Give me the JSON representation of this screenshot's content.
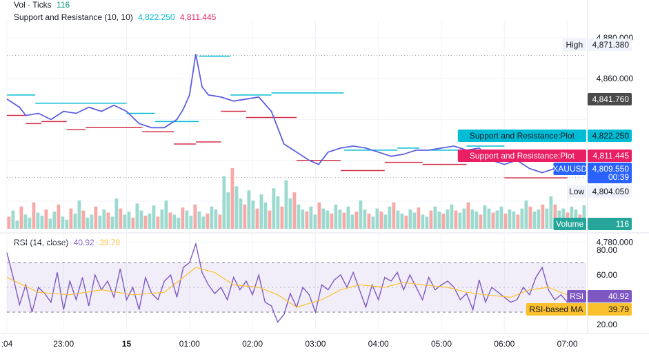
{
  "legend": {
    "vol_label": "Vol · Ticks",
    "vol_value": "116",
    "sr_label": "Support and Resistance (10, 10)",
    "sr_resistance": "4,822.250",
    "sr_support": "4,811.445",
    "rsi_label": "RSI (14, close)",
    "rsi_value": "40.92",
    "rsi_ma_value": "39.79"
  },
  "price_axis": {
    "ticks": [
      {
        "label": "4,880.000",
        "value": 4880
      },
      {
        "label": "4,860.000",
        "value": 4860
      },
      {
        "label": "4,780.000",
        "value": 4780
      }
    ],
    "tags": [
      {
        "name": "high",
        "label": "High",
        "value_label": "4,871.380",
        "value": 4871.38,
        "bg": "#f0f3fa",
        "fg": "#131722"
      },
      {
        "name": "crosshair",
        "label": "",
        "value_label": "4,841.760",
        "value": 4841.76,
        "bg": "#4a4a4a",
        "fg": "#ffffff"
      },
      {
        "name": "resistance",
        "label": "Support and Resistance:Plot",
        "value_label": "4,822.250",
        "value": 4822.25,
        "bg": "#00bcd4",
        "fg": "#131722"
      },
      {
        "name": "support",
        "label": "Support and Resistance:Plot",
        "value_label": "4,811.445",
        "value": 4811.445,
        "bg": "#e91e63",
        "fg": "#ffffff"
      },
      {
        "name": "symbol",
        "label": "XAUUSD",
        "value_label": "4,809.550",
        "value": 4809.55,
        "sub": "00:39",
        "bg": "#2962ff",
        "fg": "#ffffff"
      },
      {
        "name": "low",
        "label": "Low",
        "value_label": "4,804.050",
        "value": 4804.05,
        "bg": "#f0f3fa",
        "fg": "#131722"
      },
      {
        "name": "volume",
        "label": "Volume",
        "value_label": "116",
        "value": 116,
        "bg": "#26a69a",
        "fg": "#ffffff"
      }
    ]
  },
  "rsi_axis": {
    "ticks": [
      {
        "label": "80.00",
        "value": 80
      },
      {
        "label": "60.00",
        "value": 60
      },
      {
        "label": "20.00",
        "value": 20
      }
    ],
    "band": [
      30,
      70
    ],
    "tags": [
      {
        "name": "rsi",
        "label": "RSI",
        "value_label": "40.92",
        "value": 40.92,
        "bg": "#7e57c2",
        "fg": "#ffffff"
      },
      {
        "name": "rsi-ma",
        "label": "RSI-based MA",
        "value_label": "39.79",
        "value": 39.79,
        "bg": "#fbc02d",
        "fg": "#131722"
      }
    ]
  },
  "time_axis": {
    "ticks": [
      {
        "label": ":04",
        "t": 0
      },
      {
        "label": "23:00",
        "t": 0.9
      },
      {
        "label": "15",
        "t": 1.9
      },
      {
        "label": "01:00",
        "t": 2.9
      },
      {
        "label": "02:00",
        "t": 3.9
      },
      {
        "label": "03:00",
        "t": 4.9
      },
      {
        "label": "04:00",
        "t": 5.9
      },
      {
        "label": "05:00",
        "t": 6.9
      },
      {
        "label": "06:00",
        "t": 7.9
      },
      {
        "label": "07:00",
        "t": 8.9
      }
    ]
  },
  "chart_data": [
    {
      "type": "line",
      "title": "Support and Resistance (10, 10)",
      "xlabel": "",
      "ylabel": "",
      "x_unit": "hours since 22:04",
      "ylim": [
        4800,
        4885
      ],
      "series": [
        {
          "name": "XAUUSD",
          "color": "#5b5fe0",
          "x": [
            0,
            0.2,
            0.3,
            0.5,
            0.7,
            0.9,
            1.1,
            1.3,
            1.5,
            1.7,
            1.9,
            2.1,
            2.3,
            2.5,
            2.7,
            2.8,
            2.9,
            3.0,
            3.1,
            3.2,
            3.4,
            3.6,
            3.8,
            4.0,
            4.2,
            4.4,
            4.6,
            4.8,
            4.95,
            5.1,
            5.3,
            5.5,
            5.7,
            5.9,
            6.1,
            6.3,
            6.5,
            6.7,
            6.9,
            7.1,
            7.3,
            7.5,
            7.7,
            7.9,
            8.1,
            8.3,
            8.5,
            8.7,
            8.9,
            9.1
          ],
          "y": [
            4850,
            4846,
            4842,
            4843,
            4840,
            4844,
            4843,
            4846,
            4844,
            4847,
            4844,
            4838,
            4836,
            4836,
            4840,
            4845,
            4852,
            4872,
            4856,
            4852,
            4851,
            4849,
            4850,
            4851,
            4844,
            4828,
            4824,
            4820,
            4818,
            4824,
            4826,
            4827,
            4826,
            4824,
            4822,
            4823,
            4825,
            4825,
            4826,
            4827,
            4825,
            4826,
            4820,
            4818,
            4820,
            4816,
            4814,
            4816,
            4818,
            4815
          ]
        },
        {
          "name": "Resistance",
          "color": "#00bcd4",
          "segments": [
            [
              0,
              0.45,
              4852
            ],
            [
              0.45,
              1.9,
              4848
            ],
            [
              1.9,
              2.35,
              4843
            ],
            [
              2.35,
              3.05,
              4839
            ],
            [
              3.05,
              3.55,
              4871
            ],
            [
              3.55,
              4.2,
              4852
            ],
            [
              4.2,
              5.35,
              4853
            ],
            [
              5.35,
              6.2,
              4825
            ],
            [
              6.2,
              6.55,
              4826
            ],
            [
              6.55,
              7.3,
              4825
            ],
            [
              7.3,
              7.9,
              4827
            ],
            [
              7.9,
              8.6,
              4822.25
            ]
          ]
        },
        {
          "name": "Support",
          "color": "#d32f45",
          "segments": [
            [
              0,
              0.3,
              4842
            ],
            [
              0.3,
              0.55,
              4838
            ],
            [
              0.55,
              0.95,
              4839
            ],
            [
              0.95,
              1.25,
              4835
            ],
            [
              1.25,
              2.15,
              4836
            ],
            [
              2.15,
              2.65,
              4834
            ],
            [
              2.65,
              3.0,
              4828
            ],
            [
              3.0,
              3.4,
              4829
            ],
            [
              3.4,
              3.8,
              4844
            ],
            [
              3.8,
              4.6,
              4841
            ],
            [
              4.6,
              5.3,
              4820
            ],
            [
              5.3,
              6.0,
              4815
            ],
            [
              6.0,
              6.6,
              4819
            ],
            [
              6.6,
              7.3,
              4818
            ],
            [
              7.3,
              7.9,
              4820
            ],
            [
              7.9,
              8.9,
              4811.445
            ]
          ]
        }
      ]
    },
    {
      "type": "bar",
      "title": "Vol · Ticks",
      "x_unit": "hours since 22:04",
      "note": "sampled bars",
      "series": [
        {
          "name": "Volume",
          "values": [
            60,
            90,
            40,
            110,
            70,
            55,
            130,
            80,
            65,
            95,
            50,
            85,
            120,
            60,
            45,
            100,
            75,
            140,
            90,
            55,
            70,
            110,
            65,
            95,
            80,
            60,
            150,
            100,
            70,
            85,
            55,
            125,
            90,
            65,
            75,
            115,
            60,
            95,
            140,
            80,
            70,
            55,
            105,
            90,
            65,
            120,
            85,
            60,
            75,
            110,
            95,
            70,
            260,
            180,
            300,
            210,
            150,
            120,
            190,
            140,
            100,
            170,
            130,
            90,
            200,
            160,
            110,
            240,
            150,
            180,
            120,
            95,
            85,
            110,
            70,
            130,
            100,
            90,
            75,
            120,
            95,
            80,
            110,
            70,
            85,
            140,
            95,
            75,
            60,
            100,
            85,
            70,
            110,
            130,
            90,
            75,
            65,
            95,
            80,
            105,
            70,
            60,
            90,
            110,
            85,
            75,
            95,
            120,
            90,
            80,
            100,
            130,
            95,
            85,
            70,
            115,
            100,
            80,
            90,
            110,
            75,
            95,
            85,
            70,
            100,
            140,
            110,
            85,
            95,
            120,
            100,
            160,
            120,
            90,
            100,
            80,
            110,
            95,
            70,
            116
          ]
        }
      ],
      "ylim": [
        0,
        320
      ]
    },
    {
      "type": "line",
      "title": "RSI (14, close)",
      "x_unit": "hours since 22:04",
      "ylim": [
        15,
        90
      ],
      "series": [
        {
          "name": "RSI",
          "color": "#7e57c2",
          "x": [
            0,
            0.1,
            0.2,
            0.3,
            0.4,
            0.5,
            0.6,
            0.7,
            0.8,
            0.9,
            1.0,
            1.1,
            1.2,
            1.3,
            1.4,
            1.5,
            1.6,
            1.7,
            1.8,
            1.9,
            2.0,
            2.1,
            2.2,
            2.3,
            2.4,
            2.5,
            2.6,
            2.7,
            2.8,
            2.9,
            3.0,
            3.1,
            3.2,
            3.3,
            3.4,
            3.5,
            3.6,
            3.7,
            3.8,
            3.9,
            4.0,
            4.1,
            4.2,
            4.3,
            4.4,
            4.5,
            4.6,
            4.7,
            4.8,
            4.9,
            5.0,
            5.1,
            5.2,
            5.3,
            5.4,
            5.5,
            5.6,
            5.7,
            5.8,
            5.9,
            6.0,
            6.1,
            6.2,
            6.3,
            6.4,
            6.5,
            6.6,
            6.7,
            6.8,
            6.9,
            7.0,
            7.1,
            7.2,
            7.3,
            7.4,
            7.5,
            7.6,
            7.7,
            7.8,
            7.9,
            8.0,
            8.1,
            8.2,
            8.3,
            8.4,
            8.5,
            8.6,
            8.7,
            8.8,
            8.9,
            9.0,
            9.1
          ],
          "y": [
            78,
            58,
            36,
            52,
            30,
            50,
            45,
            38,
            62,
            32,
            55,
            40,
            58,
            35,
            60,
            48,
            55,
            42,
            65,
            40,
            50,
            32,
            58,
            45,
            40,
            55,
            60,
            42,
            66,
            70,
            85,
            62,
            52,
            45,
            50,
            40,
            58,
            48,
            55,
            44,
            60,
            38,
            35,
            22,
            28,
            45,
            34,
            50,
            44,
            30,
            52,
            48,
            56,
            60,
            50,
            62,
            48,
            34,
            52,
            40,
            58,
            55,
            62,
            48,
            60,
            50,
            40,
            58,
            48,
            52,
            55,
            50,
            40,
            45,
            32,
            56,
            38,
            50,
            46,
            42,
            38,
            40,
            50,
            44,
            58,
            66,
            48,
            40,
            44,
            38,
            41,
            40.92
          ]
        },
        {
          "name": "RSI-based MA",
          "color": "#fbc02d",
          "x": [
            0,
            0.5,
            1.0,
            1.5,
            2.0,
            2.5,
            3.0,
            3.3,
            3.6,
            4.0,
            4.3,
            4.6,
            5.0,
            5.3,
            5.6,
            6.0,
            6.3,
            6.6,
            7.0,
            7.3,
            7.6,
            8.0,
            8.3,
            8.6,
            9.1
          ],
          "y": [
            58,
            46,
            44,
            48,
            44,
            46,
            66,
            62,
            52,
            50,
            44,
            34,
            40,
            48,
            52,
            50,
            54,
            52,
            50,
            46,
            44,
            42,
            48,
            50,
            39.79
          ]
        }
      ]
    }
  ]
}
